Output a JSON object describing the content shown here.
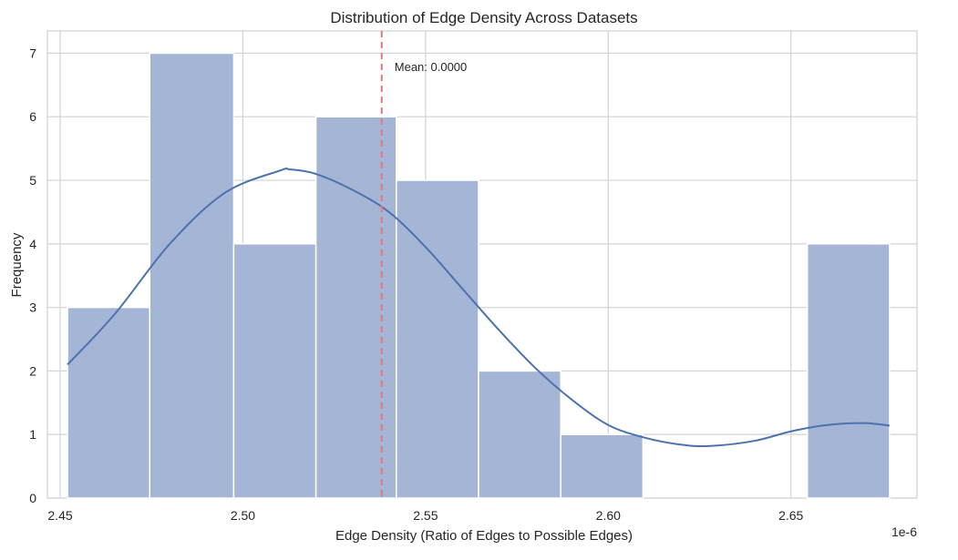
{
  "chart_data": {
    "type": "bar",
    "title": "Distribution of Edge Density Across Datasets",
    "xlabel": "Edge Density (Ratio of Edges to Possible Edges)",
    "ylabel": "Frequency",
    "x_offset_label": "1e-6",
    "xlim": [
      2.4465,
      2.6845
    ],
    "ylim": [
      0,
      7.35
    ],
    "x_ticks": [
      2.45,
      2.5,
      2.55,
      2.6,
      2.65
    ],
    "x_tick_labels": [
      "2.45",
      "2.50",
      "2.55",
      "2.60",
      "2.65"
    ],
    "y_ticks": [
      0,
      1,
      2,
      3,
      4,
      5,
      6,
      7
    ],
    "y_tick_labels": [
      "0",
      "1",
      "2",
      "3",
      "4",
      "5",
      "6",
      "7"
    ],
    "grid": true,
    "bar_color": "#a4b5d6",
    "line_color": "#4c72b0",
    "mean_line_color": "#e07a7a",
    "bins": [
      {
        "x0": 2.452,
        "x1": 2.4745,
        "count": 3
      },
      {
        "x0": 2.4745,
        "x1": 2.4975,
        "count": 7
      },
      {
        "x0": 2.4975,
        "x1": 2.52,
        "count": 4
      },
      {
        "x0": 2.52,
        "x1": 2.542,
        "count": 6
      },
      {
        "x0": 2.542,
        "x1": 2.5645,
        "count": 5
      },
      {
        "x0": 2.5645,
        "x1": 2.587,
        "count": 2
      },
      {
        "x0": 2.587,
        "x1": 2.6095,
        "count": 1
      },
      {
        "x0": 2.6095,
        "x1": 2.632,
        "count": 0
      },
      {
        "x0": 2.632,
        "x1": 2.6545,
        "count": 0
      },
      {
        "x0": 2.6545,
        "x1": 2.677,
        "count": 4
      }
    ],
    "kde": {
      "x": [
        2.452,
        2.465,
        2.48,
        2.495,
        2.51,
        2.513,
        2.52,
        2.53,
        2.54,
        2.55,
        2.56,
        2.57,
        2.58,
        2.59,
        2.6,
        2.61,
        2.62,
        2.628,
        2.64,
        2.65,
        2.66,
        2.67,
        2.677
      ],
      "y": [
        2.1,
        2.9,
        4.0,
        4.8,
        5.15,
        5.17,
        5.1,
        4.85,
        4.5,
        3.95,
        3.3,
        2.65,
        2.05,
        1.55,
        1.15,
        0.95,
        0.84,
        0.82,
        0.9,
        1.05,
        1.15,
        1.18,
        1.14
      ]
    },
    "mean": {
      "x": 2.538,
      "label": "Mean: 0.0000"
    }
  }
}
